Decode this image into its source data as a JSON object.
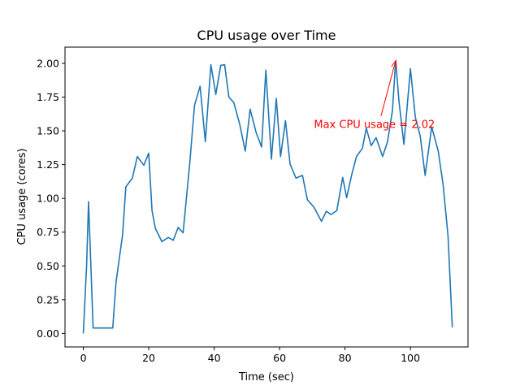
{
  "chart_data": {
    "type": "line",
    "title": "CPU usage over Time",
    "xlabel": "Time (sec)",
    "ylabel": "CPU usage (cores)",
    "xlim": [
      -5.6,
      117.6
    ],
    "ylim": [
      -0.1,
      2.12
    ],
    "xticks": [
      0,
      20,
      40,
      60,
      80,
      100
    ],
    "xtick_labels": [
      "0",
      "20",
      "40",
      "60",
      "80",
      "100"
    ],
    "yticks": [
      0.0,
      0.25,
      0.5,
      0.75,
      1.0,
      1.25,
      1.5,
      1.75,
      2.0
    ],
    "ytick_labels": [
      "0.00",
      "0.25",
      "0.50",
      "0.75",
      "1.00",
      "1.25",
      "1.50",
      "1.75",
      "2.00"
    ],
    "grid": false,
    "series": [
      {
        "color": "#1f77b4",
        "x": [
          0,
          1,
          1.6,
          3,
          9,
          10,
          12,
          13,
          15,
          16.5,
          18.5,
          20,
          21,
          22,
          24,
          26,
          27.5,
          29,
          30.5,
          32.5,
          34,
          35.7,
          37.3,
          39,
          40.5,
          42,
          43.2,
          44.5,
          46,
          47.8,
          49.5,
          51,
          52.8,
          54.5,
          55.8,
          57.5,
          59,
          60.3,
          61.8,
          63.2,
          65,
          67,
          68.5,
          70.5,
          72.8,
          74.3,
          75.7,
          77.5,
          79.3,
          80.5,
          82,
          83.5,
          85.3,
          86.5,
          88,
          89.5,
          91.5,
          93,
          94.5,
          95.5,
          96.5,
          98,
          100,
          101.5,
          103,
          104.5,
          106.5,
          108.5,
          110,
          111.5,
          112.8
        ],
        "y": [
          0.0,
          0.5,
          0.975,
          0.04,
          0.04,
          0.38,
          0.73,
          1.085,
          1.15,
          1.31,
          1.245,
          1.335,
          0.91,
          0.78,
          0.68,
          0.71,
          0.69,
          0.785,
          0.745,
          1.25,
          1.69,
          1.83,
          1.42,
          1.99,
          1.77,
          1.985,
          1.99,
          1.75,
          1.71,
          1.55,
          1.35,
          1.66,
          1.49,
          1.38,
          1.95,
          1.29,
          1.74,
          1.31,
          1.575,
          1.255,
          1.15,
          1.17,
          0.99,
          0.935,
          0.83,
          0.905,
          0.88,
          0.91,
          1.155,
          1.005,
          1.17,
          1.31,
          1.37,
          1.52,
          1.39,
          1.45,
          1.31,
          1.42,
          1.65,
          2.02,
          1.72,
          1.4,
          1.96,
          1.6,
          1.46,
          1.17,
          1.53,
          1.35,
          1.1,
          0.72,
          0.045
        ]
      }
    ],
    "annotations": [
      {
        "text": "Max CPU usage = 2.02",
        "text_x": 70.5,
        "text_y": 1.55,
        "arrow_from_x": 91,
        "arrow_from_y": 1.61,
        "arrow_to_x": 95.5,
        "arrow_to_y": 2.02,
        "color": "#ff0000"
      }
    ]
  }
}
